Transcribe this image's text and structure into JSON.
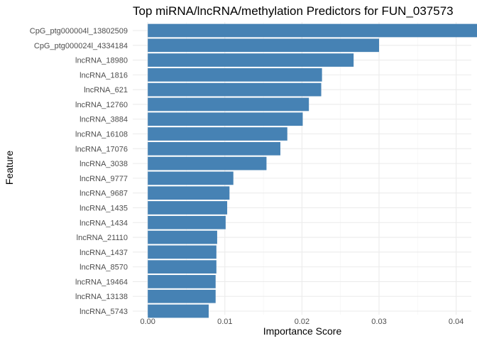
{
  "chart_data": {
    "type": "bar",
    "orientation": "horizontal",
    "title": "Top miRNA/lncRNA/methylation Predictors for FUN_037573",
    "xlabel": "Importance Score",
    "ylabel": "Feature",
    "xlim": [
      0,
      0.0455
    ],
    "x_ticks": [
      0.0,
      0.01,
      0.02,
      0.03,
      0.04
    ],
    "x_tick_labels": [
      "0.00",
      "0.01",
      "0.02",
      "0.03",
      "0.04"
    ],
    "grid": true,
    "legend": "none",
    "bar_color": "#4682b4",
    "categories": [
      "CpG_ptg000004l_13802509",
      "CpG_ptg000024l_4334184",
      "lncRNA_18980",
      "lncRNA_1816",
      "lncRNA_621",
      "lncRNA_12760",
      "lncRNA_3884",
      "lncRNA_16108",
      "lncRNA_17076",
      "lncRNA_3038",
      "lncRNA_9777",
      "lncRNA_9687",
      "lncRNA_1435",
      "lncRNA_1434",
      "lncRNA_21110",
      "lncRNA_1437",
      "lncRNA_8570",
      "lncRNA_19464",
      "lncRNA_13138",
      "lncRNA_5743"
    ],
    "values": [
      0.0436,
      0.03,
      0.0267,
      0.0226,
      0.0225,
      0.0209,
      0.0201,
      0.0181,
      0.0172,
      0.0154,
      0.0111,
      0.0106,
      0.0103,
      0.0101,
      0.009,
      0.0089,
      0.0089,
      0.0088,
      0.0088,
      0.0079
    ]
  }
}
